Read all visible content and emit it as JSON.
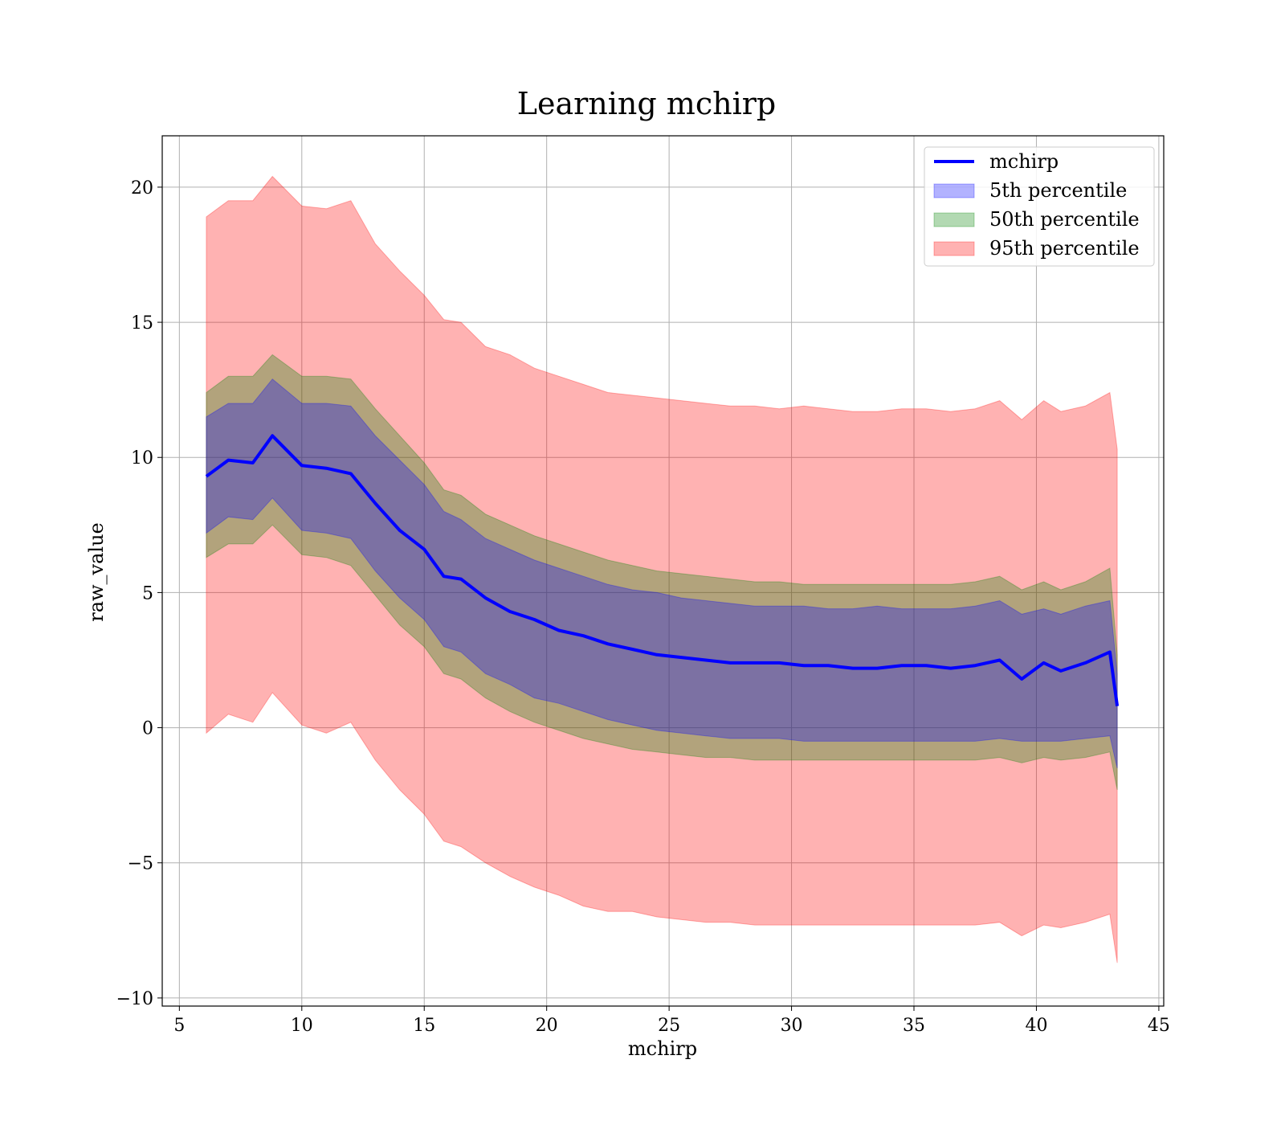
{
  "chart_data": {
    "type": "area",
    "title": "Learning mchirp",
    "xlabel": "mchirp",
    "ylabel": "raw_value",
    "xlim": [
      4.3,
      45.2
    ],
    "ylim": [
      -10.3,
      21.9
    ],
    "xticks": [
      5,
      10,
      15,
      20,
      25,
      30,
      35,
      40,
      45
    ],
    "xtick_labels": [
      "5",
      "10",
      "15",
      "20",
      "25",
      "30",
      "35",
      "40",
      "45"
    ],
    "yticks": [
      -10,
      -5,
      0,
      5,
      10,
      15,
      20
    ],
    "ytick_labels": [
      "−10",
      "−5",
      "0",
      "5",
      "10",
      "15",
      "20"
    ],
    "grid": true,
    "legend_position": "top-right",
    "colors": {
      "line": "#0000ff",
      "p5": "#0000ff",
      "p50": "#008000",
      "p95": "#ff0000"
    },
    "x": [
      6.1,
      7.0,
      8.0,
      8.8,
      10.0,
      11.0,
      12.0,
      13.0,
      14.0,
      15.0,
      15.8,
      16.5,
      17.5,
      18.5,
      19.5,
      20.5,
      21.5,
      22.5,
      23.5,
      24.5,
      25.5,
      26.5,
      27.5,
      28.5,
      29.5,
      30.5,
      31.5,
      32.5,
      33.5,
      34.5,
      35.5,
      36.5,
      37.5,
      38.5,
      39.4,
      40.3,
      41.0,
      42.0,
      43.0,
      43.3
    ],
    "series": [
      {
        "name": "mchirp",
        "kind": "line",
        "y": [
          9.3,
          9.9,
          9.8,
          10.8,
          9.7,
          9.6,
          9.4,
          8.3,
          7.3,
          6.6,
          5.6,
          5.5,
          4.8,
          4.3,
          4.0,
          3.6,
          3.4,
          3.1,
          2.9,
          2.7,
          2.6,
          2.5,
          2.4,
          2.4,
          2.4,
          2.3,
          2.3,
          2.2,
          2.2,
          2.3,
          2.3,
          2.2,
          2.3,
          2.5,
          1.8,
          2.4,
          2.1,
          2.4,
          2.8,
          0.8
        ]
      },
      {
        "name": "5th percentile",
        "kind": "band",
        "lower": [
          7.2,
          7.8,
          7.7,
          8.5,
          7.3,
          7.2,
          7.0,
          5.8,
          4.8,
          4.0,
          3.0,
          2.8,
          2.0,
          1.6,
          1.1,
          0.9,
          0.6,
          0.3,
          0.1,
          -0.1,
          -0.2,
          -0.3,
          -0.4,
          -0.4,
          -0.4,
          -0.5,
          -0.5,
          -0.5,
          -0.5,
          -0.5,
          -0.5,
          -0.5,
          -0.5,
          -0.4,
          -0.5,
          -0.5,
          -0.5,
          -0.4,
          -0.3,
          -1.5
        ],
        "upper": [
          11.5,
          12.0,
          12.0,
          12.9,
          12.0,
          12.0,
          11.9,
          10.8,
          9.9,
          9.0,
          8.0,
          7.7,
          7.0,
          6.6,
          6.2,
          5.9,
          5.6,
          5.3,
          5.1,
          5.0,
          4.8,
          4.7,
          4.6,
          4.5,
          4.5,
          4.5,
          4.4,
          4.4,
          4.5,
          4.4,
          4.4,
          4.4,
          4.5,
          4.7,
          4.2,
          4.4,
          4.2,
          4.5,
          4.7,
          2.0
        ]
      },
      {
        "name": "50th percentile",
        "kind": "band",
        "lower": [
          6.3,
          6.8,
          6.8,
          7.5,
          6.4,
          6.3,
          6.0,
          4.9,
          3.8,
          3.0,
          2.0,
          1.8,
          1.1,
          0.6,
          0.2,
          -0.1,
          -0.4,
          -0.6,
          -0.8,
          -0.9,
          -1.0,
          -1.1,
          -1.1,
          -1.2,
          -1.2,
          -1.2,
          -1.2,
          -1.2,
          -1.2,
          -1.2,
          -1.2,
          -1.2,
          -1.2,
          -1.1,
          -1.3,
          -1.1,
          -1.2,
          -1.1,
          -0.9,
          -2.3
        ],
        "upper": [
          12.4,
          13.0,
          13.0,
          13.8,
          13.0,
          13.0,
          12.9,
          11.8,
          10.8,
          9.8,
          8.8,
          8.6,
          7.9,
          7.5,
          7.1,
          6.8,
          6.5,
          6.2,
          6.0,
          5.8,
          5.7,
          5.6,
          5.5,
          5.4,
          5.4,
          5.3,
          5.3,
          5.3,
          5.3,
          5.3,
          5.3,
          5.3,
          5.4,
          5.6,
          5.1,
          5.4,
          5.1,
          5.4,
          5.9,
          2.7
        ]
      },
      {
        "name": "95th percentile",
        "kind": "band",
        "lower": [
          -0.2,
          0.5,
          0.2,
          1.3,
          0.1,
          -0.2,
          0.2,
          -1.2,
          -2.3,
          -3.2,
          -4.2,
          -4.4,
          -5.0,
          -5.5,
          -5.9,
          -6.2,
          -6.6,
          -6.8,
          -6.8,
          -7.0,
          -7.1,
          -7.2,
          -7.2,
          -7.3,
          -7.3,
          -7.3,
          -7.3,
          -7.3,
          -7.3,
          -7.3,
          -7.3,
          -7.3,
          -7.3,
          -7.2,
          -7.7,
          -7.3,
          -7.4,
          -7.2,
          -6.9,
          -8.7
        ],
        "upper": [
          18.9,
          19.5,
          19.5,
          20.4,
          19.3,
          19.2,
          19.5,
          17.9,
          16.9,
          16.0,
          15.1,
          15.0,
          14.1,
          13.8,
          13.3,
          13.0,
          12.7,
          12.4,
          12.3,
          12.2,
          12.1,
          12.0,
          11.9,
          11.9,
          11.8,
          11.9,
          11.8,
          11.7,
          11.7,
          11.8,
          11.8,
          11.7,
          11.8,
          12.1,
          11.4,
          12.1,
          11.7,
          11.9,
          12.4,
          10.3
        ]
      }
    ]
  }
}
